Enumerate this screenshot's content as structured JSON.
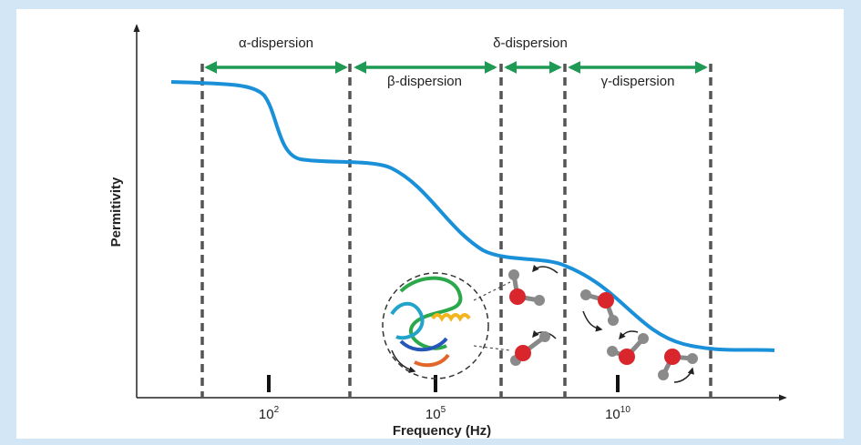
{
  "diagram": {
    "dispersions": [
      "α-dispersion",
      "β-dispersion",
      "δ-dispersion",
      "γ-dispersion"
    ],
    "x_axis": {
      "title": "Frequency (Hz)",
      "ticks": [
        {
          "base": "10",
          "exp": "2"
        },
        {
          "base": "10",
          "exp": "5"
        },
        {
          "base": "10",
          "exp": "10"
        }
      ]
    },
    "y_axis": {
      "title": "Permitivity"
    }
  }
}
